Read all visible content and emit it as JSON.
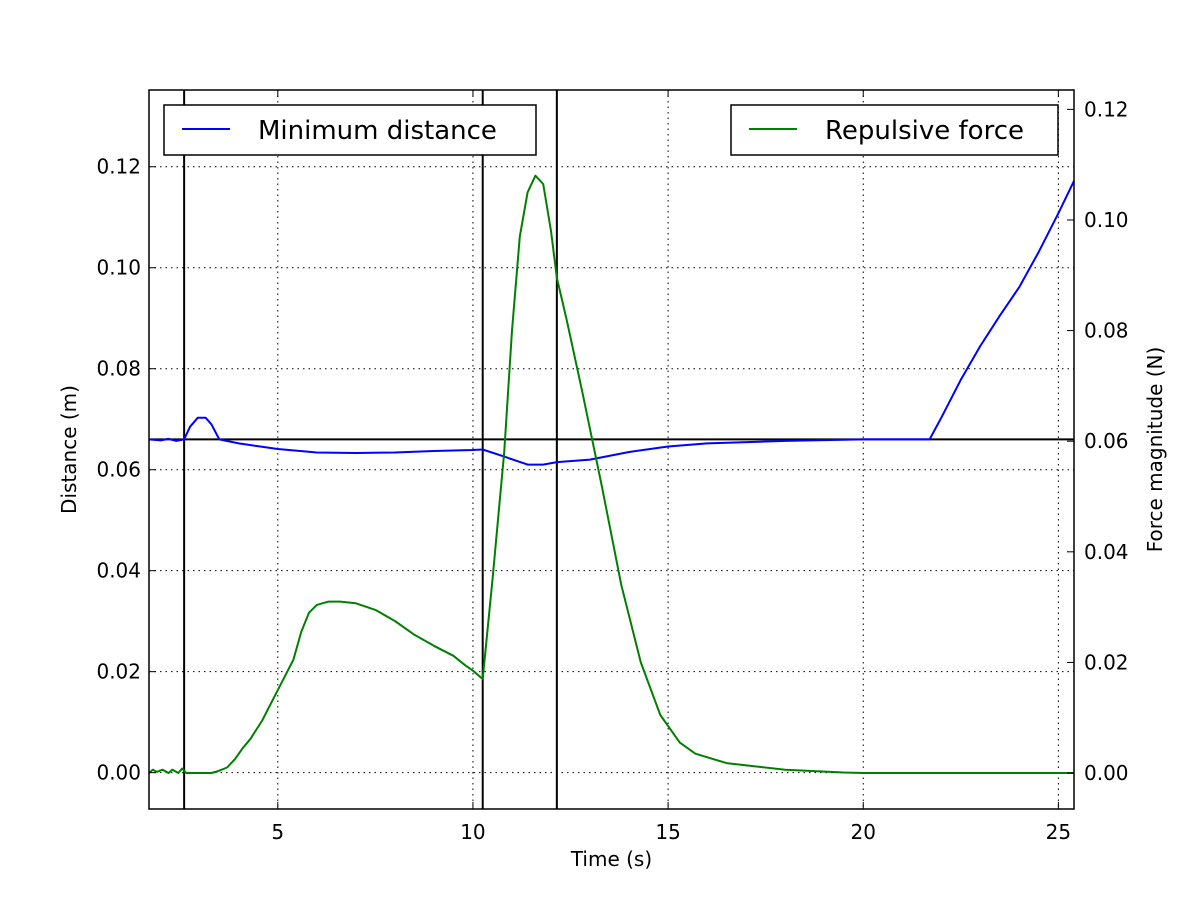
{
  "chart_data": {
    "type": "line",
    "title": "",
    "xlabel": "Time (s)",
    "ylabel": "Distance (m)",
    "ylabel_right": "Force magnitude (N)",
    "xlim": [
      1.7,
      25.4
    ],
    "ylim": [
      -0.0072,
      0.1352
    ],
    "ylim_right": [
      -0.0065,
      0.1235
    ],
    "x_ticks": [
      5,
      10,
      15,
      20,
      25
    ],
    "x_tick_labels": [
      "5",
      "10",
      "15",
      "20",
      "25"
    ],
    "y_ticks": [
      0.0,
      0.02,
      0.04,
      0.06,
      0.08,
      0.1,
      0.12
    ],
    "y_tick_labels": [
      "0.00",
      "0.02",
      "0.04",
      "0.06",
      "0.08",
      "0.10",
      "0.12"
    ],
    "y_ticks_right": [
      0.0,
      0.02,
      0.04,
      0.06,
      0.08,
      0.1,
      0.12
    ],
    "y_tick_labels_right": [
      "0.00",
      "0.02",
      "0.04",
      "0.06",
      "0.08",
      "0.10",
      "0.12"
    ],
    "grid": true,
    "grid_style": "dotted",
    "vertical_lines_x": [
      2.6,
      10.25,
      12.15
    ],
    "horizontal_line_y": 0.066,
    "series": [
      {
        "name": "Minimum distance",
        "axis": "left",
        "color": "#0000ff",
        "legend_position": "upper-left",
        "points": [
          [
            1.7,
            0.066
          ],
          [
            2.0,
            0.0658
          ],
          [
            2.2,
            0.0661
          ],
          [
            2.4,
            0.0657
          ],
          [
            2.6,
            0.066
          ],
          [
            2.75,
            0.0685
          ],
          [
            2.95,
            0.0703
          ],
          [
            3.15,
            0.0703
          ],
          [
            3.3,
            0.069
          ],
          [
            3.5,
            0.066
          ],
          [
            4.0,
            0.0652
          ],
          [
            5.0,
            0.0641
          ],
          [
            6.0,
            0.0634
          ],
          [
            7.0,
            0.0633
          ],
          [
            8.0,
            0.0634
          ],
          [
            9.0,
            0.0637
          ],
          [
            10.0,
            0.0639
          ],
          [
            10.25,
            0.064
          ],
          [
            10.8,
            0.0626
          ],
          [
            11.4,
            0.061
          ],
          [
            11.8,
            0.061
          ],
          [
            12.15,
            0.0615
          ],
          [
            13.0,
            0.062
          ],
          [
            14.0,
            0.0635
          ],
          [
            15.0,
            0.0646
          ],
          [
            16.0,
            0.0652
          ],
          [
            18.0,
            0.0657
          ],
          [
            20.0,
            0.066
          ],
          [
            21.7,
            0.066
          ],
          [
            22.0,
            0.0703
          ],
          [
            22.5,
            0.0778
          ],
          [
            23.0,
            0.0845
          ],
          [
            23.5,
            0.0905
          ],
          [
            24.0,
            0.0962
          ],
          [
            24.5,
            0.1032
          ],
          [
            25.0,
            0.1108
          ],
          [
            25.4,
            0.1172
          ]
        ]
      },
      {
        "name": "Repulsive force",
        "axis": "right",
        "color": "#008000",
        "legend_position": "upper-right",
        "points": [
          [
            1.7,
            0.0
          ],
          [
            1.8,
            0.0006
          ],
          [
            1.9,
            0.0002
          ],
          [
            2.05,
            0.0006
          ],
          [
            2.2,
            0.0
          ],
          [
            2.3,
            0.0006
          ],
          [
            2.45,
            0.0
          ],
          [
            2.55,
            0.0008
          ],
          [
            2.65,
            0.0
          ],
          [
            3.3,
            0.0
          ],
          [
            3.45,
            0.0003
          ],
          [
            3.7,
            0.001
          ],
          [
            3.9,
            0.0025
          ],
          [
            4.1,
            0.0045
          ],
          [
            4.3,
            0.0062
          ],
          [
            4.6,
            0.0095
          ],
          [
            5.0,
            0.015
          ],
          [
            5.4,
            0.0205
          ],
          [
            5.6,
            0.0255
          ],
          [
            5.8,
            0.029
          ],
          [
            6.0,
            0.0304
          ],
          [
            6.3,
            0.031
          ],
          [
            6.6,
            0.031
          ],
          [
            7.0,
            0.0307
          ],
          [
            7.5,
            0.0295
          ],
          [
            8.0,
            0.0275
          ],
          [
            8.5,
            0.025
          ],
          [
            9.0,
            0.023
          ],
          [
            9.5,
            0.0212
          ],
          [
            9.8,
            0.0195
          ],
          [
            10.0,
            0.0185
          ],
          [
            10.25,
            0.017
          ],
          [
            10.5,
            0.035
          ],
          [
            10.8,
            0.058
          ],
          [
            11.0,
            0.08
          ],
          [
            11.2,
            0.097
          ],
          [
            11.4,
            0.105
          ],
          [
            11.6,
            0.108
          ],
          [
            11.8,
            0.1065
          ],
          [
            12.0,
            0.098
          ],
          [
            12.15,
            0.0895
          ],
          [
            12.4,
            0.082
          ],
          [
            12.8,
            0.069
          ],
          [
            13.3,
            0.052
          ],
          [
            13.8,
            0.034
          ],
          [
            14.3,
            0.02
          ],
          [
            14.8,
            0.0105
          ],
          [
            15.3,
            0.0055
          ],
          [
            15.7,
            0.0035
          ],
          [
            16.5,
            0.0018
          ],
          [
            18.0,
            0.0006
          ],
          [
            19.5,
            0.0001
          ],
          [
            20.0,
            0.0
          ],
          [
            25.4,
            0.0
          ]
        ]
      }
    ]
  }
}
